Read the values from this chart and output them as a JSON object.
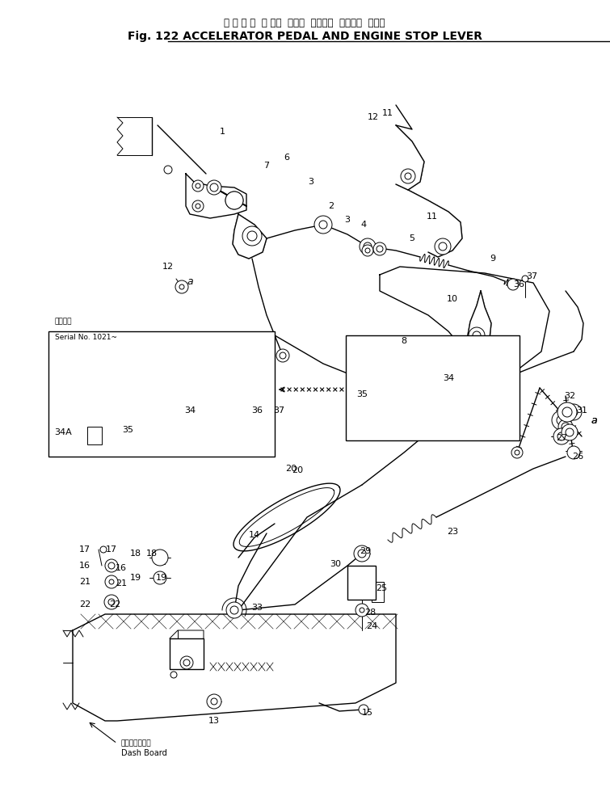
{
  "title_japanese": "ア ク セ ル  ペ ダル  および  エンジン  ストップ  レバー",
  "title_english": "Fig. 122 ACCELERATOR PEDAL AND ENGINE STOP LEVER",
  "bg_color": "#ffffff",
  "line_color": "#000000",
  "fig_width": 7.55,
  "fig_height": 9.85,
  "dpi": 100,
  "serial_note_japanese": "適用番号",
  "serial_note_english": "Serial No. 1021~",
  "dash_board_japanese": "ダッシュボード",
  "dash_board_english": "Dash Board"
}
